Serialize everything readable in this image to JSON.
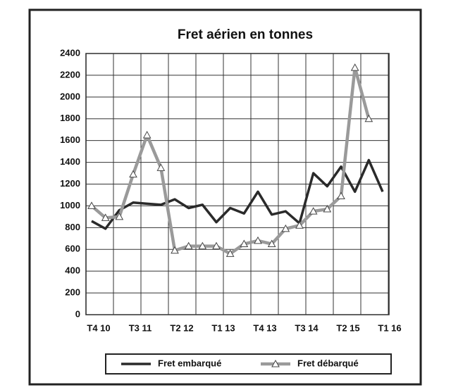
{
  "chart_data": {
    "type": "line",
    "title": "Fret aérien en tonnes",
    "categories": [
      "T4 10",
      null,
      null,
      "T3 11",
      null,
      null,
      "T2 12",
      null,
      null,
      "T1 13",
      null,
      null,
      "T4 13",
      null,
      null,
      "T3 14",
      null,
      null,
      "T2 15",
      null,
      null,
      "T1 16"
    ],
    "series": [
      {
        "name": "Fret embarqué",
        "color": "#2a2a2a",
        "values": [
          860,
          790,
          960,
          1030,
          1020,
          1010,
          1060,
          980,
          1010,
          850,
          980,
          930,
          1130,
          920,
          950,
          840,
          1300,
          1180,
          1360,
          1130,
          1420,
          1130
        ]
      },
      {
        "name": "Fret débarqué",
        "color": "#9a9a9a",
        "values": [
          1000,
          890,
          900,
          1290,
          1650,
          1350,
          590,
          630,
          630,
          630,
          560,
          650,
          680,
          650,
          790,
          820,
          950,
          970,
          1090,
          2270,
          1800,
          null
        ]
      }
    ],
    "ylim": [
      0,
      2400
    ],
    "yticks": [
      0,
      200,
      400,
      600,
      800,
      1000,
      1200,
      1400,
      1600,
      1800,
      2000,
      2200,
      2400
    ],
    "grid": true
  }
}
